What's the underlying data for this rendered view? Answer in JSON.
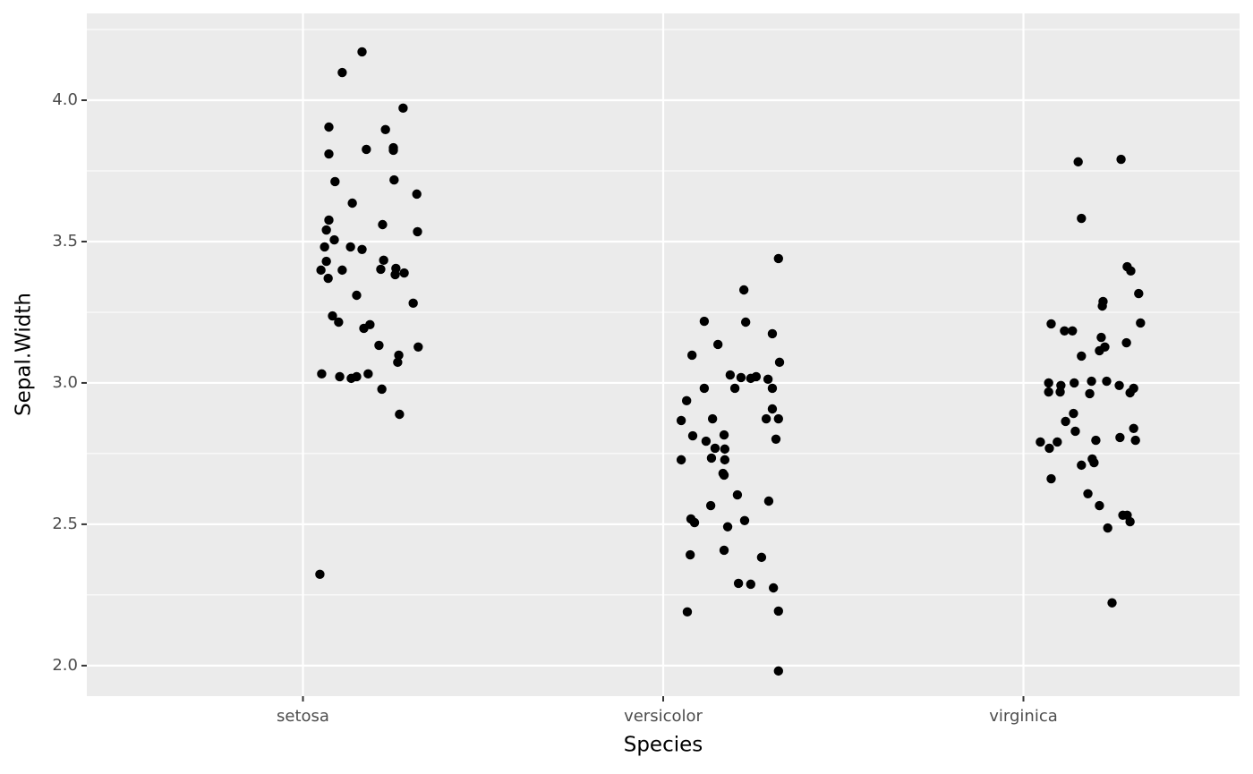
{
  "chart_data": {
    "type": "scatter",
    "x_label": "Species",
    "y_label": "Sepal.Width",
    "color": "#000000",
    "xlim": [
      0.4,
      3.6
    ],
    "ylim": [
      1.892,
      4.307
    ],
    "xticks": [
      {
        "value": 1,
        "label": "setosa"
      },
      {
        "value": 2,
        "label": "versicolor"
      },
      {
        "value": 3,
        "label": "virginica"
      }
    ],
    "yticks": [
      {
        "value": 2,
        "label": "2.0"
      },
      2.5,
      {
        "value": 3,
        "label": "3.0"
      },
      3.5,
      {
        "value": 4,
        "label": "4.0"
      }
    ],
    "yminor": [
      2.25,
      2.75,
      3.25,
      3.75,
      4.25
    ],
    "grid": true,
    "x": [
      1.164,
      1.109,
      1.278,
      1.072,
      1.229,
      1.251,
      1.176,
      1.251,
      1.072,
      1.253,
      1.089,
      1.316,
      1.137,
      1.072,
      1.221,
      1.065,
      1.318,
      1.087,
      1.06,
      1.132,
      1.164,
      1.065,
      1.224,
      1.05,
      1.109,
      1.216,
      1.258,
      1.281,
      1.256,
      1.07,
      1.149,
      1.306,
      1.082,
      1.099,
      1.186,
      1.169,
      1.211,
      1.32,
      1.266,
      1.263,
      1.052,
      1.102,
      1.134,
      1.149,
      1.181,
      1.219,
      1.268,
      1.047,
      2.32,
      2.224,
      2.114,
      2.229,
      2.303,
      2.152,
      2.08,
      2.323,
      2.186,
      2.216,
      2.243,
      2.258,
      2.291,
      2.114,
      2.199,
      2.303,
      2.065,
      2.303,
      2.05,
      2.137,
      2.286,
      2.32,
      2.082,
      2.169,
      2.119,
      2.313,
      2.144,
      2.171,
      2.05,
      2.134,
      2.171,
      2.166,
      2.169,
      2.206,
      2.132,
      2.293,
      2.077,
      2.087,
      2.226,
      2.179,
      2.169,
      2.075,
      2.273,
      2.209,
      2.243,
      2.306,
      2.067,
      2.32,
      2.32,
      3.271,
      3.152,
      3.161,
      3.288,
      3.298,
      3.32,
      3.221,
      3.219,
      3.077,
      3.325,
      3.114,
      3.136,
      3.216,
      3.286,
      3.226,
      3.211,
      3.161,
      3.07,
      3.104,
      3.141,
      3.189,
      3.231,
      3.266,
      3.306,
      3.07,
      3.102,
      3.184,
      3.296,
      3.139,
      3.117,
      3.306,
      3.144,
      3.047,
      3.094,
      3.201,
      3.268,
      3.311,
      3.072,
      3.191,
      3.196,
      3.161,
      3.077,
      3.179,
      3.211,
      3.276,
      3.288,
      3.296,
      3.234,
      3.246
    ],
    "y": [
      4.171,
      4.098,
      3.972,
      3.905,
      3.896,
      3.832,
      3.826,
      3.823,
      3.81,
      3.718,
      3.712,
      3.668,
      3.636,
      3.576,
      3.56,
      3.541,
      3.535,
      3.506,
      3.481,
      3.481,
      3.472,
      3.43,
      3.434,
      3.399,
      3.399,
      3.402,
      3.405,
      3.389,
      3.383,
      3.37,
      3.31,
      3.282,
      3.237,
      3.215,
      3.206,
      3.193,
      3.133,
      3.127,
      3.098,
      3.073,
      3.032,
      3.022,
      3.016,
      3.022,
      3.032,
      2.978,
      2.889,
      2.323,
      3.44,
      3.329,
      3.218,
      3.215,
      3.174,
      3.136,
      3.098,
      3.073,
      3.028,
      3.019,
      3.016,
      3.022,
      3.013,
      2.981,
      2.981,
      2.981,
      2.937,
      2.908,
      2.867,
      2.873,
      2.873,
      2.873,
      2.813,
      2.816,
      2.794,
      2.801,
      2.769,
      2.766,
      2.728,
      2.734,
      2.728,
      2.68,
      2.674,
      2.604,
      2.566,
      2.582,
      2.519,
      2.506,
      2.513,
      2.491,
      2.408,
      2.392,
      2.383,
      2.291,
      2.288,
      2.275,
      2.19,
      2.193,
      1.981,
      3.791,
      3.782,
      3.582,
      3.411,
      3.396,
      3.316,
      3.288,
      3.272,
      3.209,
      3.212,
      3.184,
      3.184,
      3.161,
      3.142,
      3.127,
      3.114,
      3.095,
      3.0,
      2.991,
      3.0,
      3.006,
      3.006,
      2.991,
      2.981,
      2.968,
      2.968,
      2.962,
      2.965,
      2.892,
      2.864,
      2.839,
      2.829,
      2.791,
      2.791,
      2.797,
      2.807,
      2.797,
      2.769,
      2.731,
      2.718,
      2.709,
      2.661,
      2.608,
      2.566,
      2.532,
      2.532,
      2.509,
      2.487,
      2.222
    ]
  }
}
